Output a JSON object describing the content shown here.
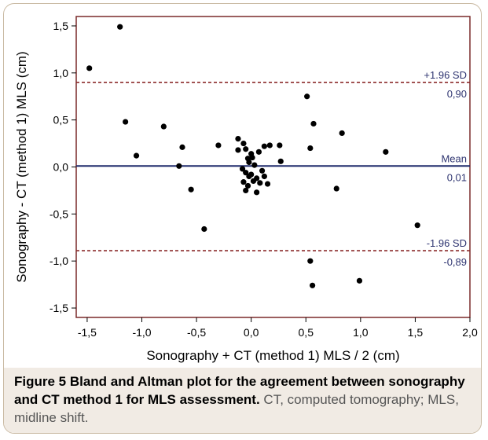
{
  "colors": {
    "frame_border": "#c9b9a2",
    "plot_border": "#7a2a2a",
    "mean_line": "#1f2a6b",
    "sd_line": "#8b2a2a",
    "label_text": "#2e3470",
    "points": "#000000",
    "caption_bg": "#f1ebe4"
  },
  "caption": {
    "title": "Figure 5 Bland and Altman plot for the agreement between sonography and CT method 1 for MLS assessment.",
    "text": " CT, computed tomography; MLS, midline shift."
  },
  "chart_data": {
    "type": "scatter",
    "xlabel": "Sonography + CT (method 1) MLS / 2 (cm)",
    "ylabel": "Sonography - CT (method 1) MLS (cm)",
    "xlim": [
      -1.6,
      2.0
    ],
    "ylim": [
      -1.6,
      1.6
    ],
    "xticks": [
      -1.5,
      -1.0,
      -0.5,
      0.0,
      0.5,
      1.0,
      1.5,
      2.0
    ],
    "xtick_labels": [
      "-1,5",
      "-1,0",
      "-0,5",
      "0,0",
      "0,5",
      "1,0",
      "1,5",
      "2,0"
    ],
    "yticks": [
      -1.5,
      -1.0,
      -0.5,
      0.0,
      0.5,
      1.0,
      1.5
    ],
    "ytick_labels": [
      "-1,5",
      "-1,0",
      "-0,5",
      "0,0",
      "0,5",
      "1,0",
      "1,5"
    ],
    "grid": false,
    "reference_lines": [
      {
        "kind": "upper",
        "y": 0.9,
        "name": "+1.96 SD",
        "value_label": "0,90"
      },
      {
        "kind": "mean",
        "y": 0.01,
        "name": "Mean",
        "value_label": "0,01"
      },
      {
        "kind": "lower",
        "y": -0.89,
        "name": "-1.96 SD",
        "value_label": "-0,89"
      }
    ],
    "points": [
      {
        "x": -1.48,
        "y": 1.05
      },
      {
        "x": -1.2,
        "y": 1.49
      },
      {
        "x": -1.15,
        "y": 0.48
      },
      {
        "x": -1.05,
        "y": 0.12
      },
      {
        "x": -0.8,
        "y": 0.43
      },
      {
        "x": -0.63,
        "y": 0.21
      },
      {
        "x": -0.66,
        "y": 0.01
      },
      {
        "x": -0.55,
        "y": -0.24
      },
      {
        "x": -0.43,
        "y": -0.66
      },
      {
        "x": -0.3,
        "y": 0.23
      },
      {
        "x": -0.12,
        "y": 0.3
      },
      {
        "x": -0.12,
        "y": 0.18
      },
      {
        "x": -0.07,
        "y": 0.25
      },
      {
        "x": -0.05,
        "y": 0.19
      },
      {
        "x": -0.03,
        "y": 0.09
      },
      {
        "x": -0.02,
        "y": 0.05
      },
      {
        "x": 0.0,
        "y": 0.14
      },
      {
        "x": 0.01,
        "y": 0.1
      },
      {
        "x": 0.03,
        "y": 0.02
      },
      {
        "x": -0.08,
        "y": -0.02
      },
      {
        "x": -0.05,
        "y": -0.06
      },
      {
        "x": -0.02,
        "y": -0.1
      },
      {
        "x": 0.0,
        "y": -0.08
      },
      {
        "x": -0.07,
        "y": -0.16
      },
      {
        "x": -0.03,
        "y": -0.2
      },
      {
        "x": 0.02,
        "y": -0.15
      },
      {
        "x": 0.05,
        "y": -0.12
      },
      {
        "x": 0.08,
        "y": -0.17
      },
      {
        "x": -0.05,
        "y": -0.25
      },
      {
        "x": 0.05,
        "y": -0.27
      },
      {
        "x": 0.1,
        "y": -0.04
      },
      {
        "x": 0.12,
        "y": -0.1
      },
      {
        "x": 0.15,
        "y": -0.18
      },
      {
        "x": 0.12,
        "y": 0.22
      },
      {
        "x": 0.17,
        "y": 0.23
      },
      {
        "x": 0.07,
        "y": 0.16
      },
      {
        "x": 0.26,
        "y": 0.23
      },
      {
        "x": 0.27,
        "y": 0.06
      },
      {
        "x": 0.51,
        "y": 0.75
      },
      {
        "x": 0.57,
        "y": 0.46
      },
      {
        "x": 0.54,
        "y": 0.2
      },
      {
        "x": 0.83,
        "y": 0.36
      },
      {
        "x": 0.78,
        "y": -0.23
      },
      {
        "x": 1.23,
        "y": 0.16
      },
      {
        "x": 0.54,
        "y": -1.0
      },
      {
        "x": 0.56,
        "y": -1.26
      },
      {
        "x": 0.99,
        "y": -1.21
      },
      {
        "x": 1.52,
        "y": -0.62
      }
    ]
  }
}
